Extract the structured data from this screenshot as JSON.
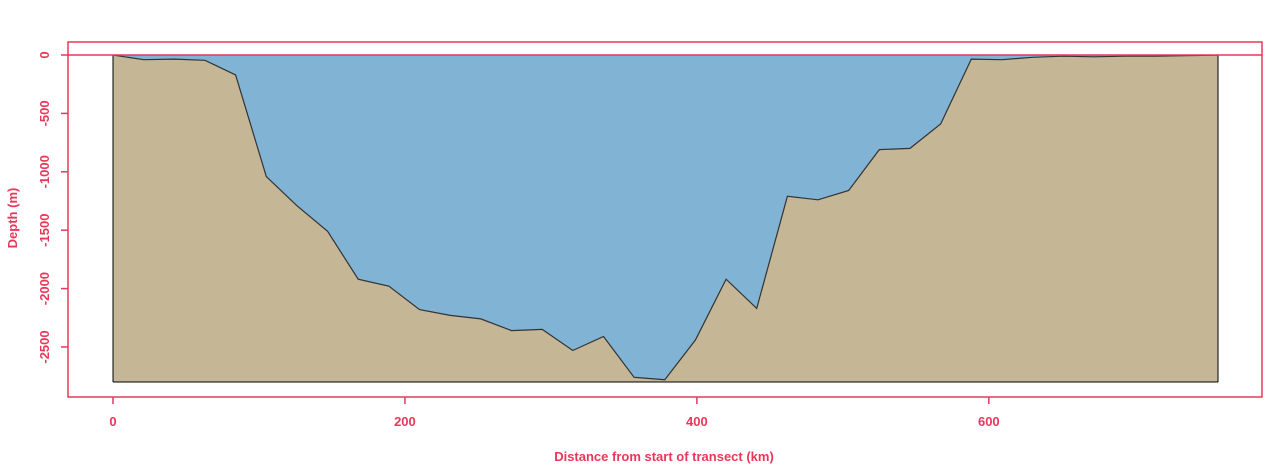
{
  "colors": {
    "accent": "#e8385a",
    "water": "#81b3d4",
    "seabed": "#c5b696",
    "outline": "#333333",
    "background": "#ffffff"
  },
  "chart_data": {
    "type": "area",
    "title": "",
    "xlabel": "Distance from start of transect (km)",
    "ylabel": "Depth (m)",
    "xlim": [
      0,
      757
    ],
    "ylim": [
      -2800,
      0
    ],
    "x_ticks": [
      0,
      200,
      400,
      600
    ],
    "x_tick_labels": [
      "0",
      "200",
      "400",
      "600"
    ],
    "y_ticks": [
      0,
      -500,
      -1000,
      -1500,
      -2000,
      -2500
    ],
    "y_tick_labels": [
      "0",
      "-500",
      "-1000",
      "-1500",
      "-2000",
      "-2500"
    ],
    "grid": false,
    "reference_line": {
      "y": 0
    },
    "series": [
      {
        "x": [
          0,
          21,
          42,
          63,
          84,
          105,
          126,
          147,
          168,
          189,
          210,
          231,
          252,
          273,
          294,
          315,
          336,
          357,
          378,
          399,
          420,
          441,
          462,
          483,
          504,
          525,
          546,
          567,
          588,
          609,
          630,
          651,
          672,
          693,
          714,
          735,
          757
        ],
        "values": [
          0,
          -40,
          -35,
          -45,
          -170,
          -1040,
          -1290,
          -1510,
          -1920,
          -1980,
          -2180,
          -2230,
          -2260,
          -2360,
          -2350,
          -2530,
          -2410,
          -2760,
          -2780,
          -2440,
          -1920,
          -2170,
          -1210,
          -1240,
          -1160,
          -810,
          -800,
          -590,
          -35,
          -40,
          -20,
          -10,
          -15,
          -10,
          -10,
          -5,
          -2
        ]
      }
    ]
  }
}
